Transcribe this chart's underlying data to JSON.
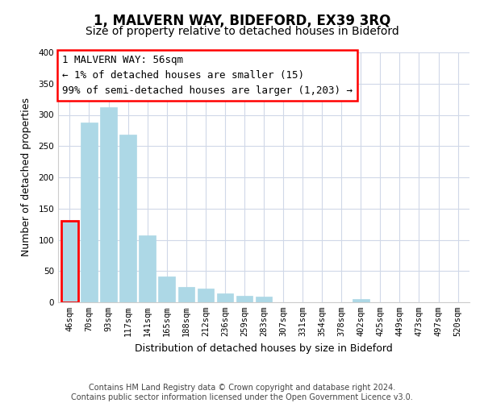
{
  "title": "1, MALVERN WAY, BIDEFORD, EX39 3RQ",
  "subtitle": "Size of property relative to detached houses in Bideford",
  "xlabel": "Distribution of detached houses by size in Bideford",
  "ylabel": "Number of detached properties",
  "bar_labels": [
    "46sqm",
    "70sqm",
    "93sqm",
    "117sqm",
    "141sqm",
    "165sqm",
    "188sqm",
    "212sqm",
    "236sqm",
    "259sqm",
    "283sqm",
    "307sqm",
    "331sqm",
    "354sqm",
    "378sqm",
    "402sqm",
    "425sqm",
    "449sqm",
    "473sqm",
    "497sqm",
    "520sqm"
  ],
  "bar_values": [
    130,
    288,
    312,
    268,
    107,
    41,
    25,
    22,
    14,
    10,
    9,
    0,
    0,
    0,
    0,
    5,
    0,
    0,
    0,
    0,
    0
  ],
  "bar_color": "#add8e6",
  "bar_edge_color": "#add8e6",
  "highlight_bar_index": 0,
  "highlight_edge_color": "red",
  "ylim": [
    0,
    400
  ],
  "yticks": [
    0,
    50,
    100,
    150,
    200,
    250,
    300,
    350,
    400
  ],
  "annotation_title": "1 MALVERN WAY: 56sqm",
  "annotation_line1": "← 1% of detached houses are smaller (15)",
  "annotation_line2": "99% of semi-detached houses are larger (1,203) →",
  "footer_line1": "Contains HM Land Registry data © Crown copyright and database right 2024.",
  "footer_line2": "Contains public sector information licensed under the Open Government Licence v3.0.",
  "background_color": "#ffffff",
  "grid_color": "#d0d8e8",
  "title_fontsize": 12,
  "subtitle_fontsize": 10,
  "axis_label_fontsize": 9,
  "tick_fontsize": 7.5,
  "annotation_fontsize": 9,
  "footer_fontsize": 7
}
